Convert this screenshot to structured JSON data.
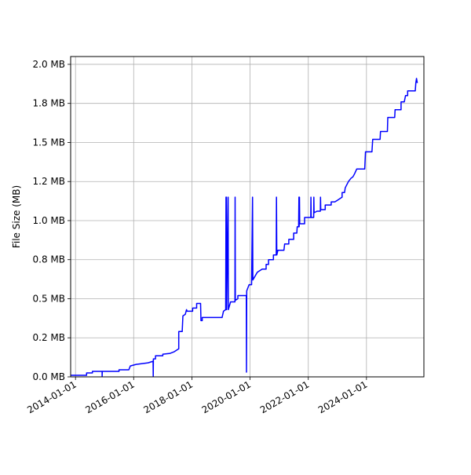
{
  "chart_data": {
    "type": "line",
    "title": "",
    "xlabel": "",
    "ylabel": "File Size (MB)",
    "grid": true,
    "legend": "none",
    "xlim": [
      "2013-11-01",
      "2025-12-22"
    ],
    "ylim": [
      0,
      2.05
    ],
    "x_ticks": [
      "2014-01-01",
      "2016-01-01",
      "2018-01-01",
      "2020-01-01",
      "2022-01-01",
      "2024-01-01"
    ],
    "y_ticks": [
      0.0,
      0.25,
      0.5,
      0.75,
      1.0,
      1.25,
      1.5,
      1.75,
      2.0
    ],
    "y_tick_labels": [
      "0.0 MB",
      "0.2 MB",
      "0.5 MB",
      "0.8 MB",
      "1.0 MB",
      "1.2 MB",
      "1.5 MB",
      "1.8 MB",
      "2.0 MB"
    ],
    "series": [
      {
        "color": "#0000ff",
        "points": [
          [
            "2013-11-01",
            0.01
          ],
          [
            "2014-05-20",
            0.01
          ],
          [
            "2014-05-20",
            0.025
          ],
          [
            "2014-08-01",
            0.025
          ],
          [
            "2014-08-01",
            0.035
          ],
          [
            "2014-12-01",
            0.035
          ],
          [
            "2014-12-01",
            0.0
          ],
          [
            "2014-12-03",
            0.035
          ],
          [
            "2015-07-01",
            0.035
          ],
          [
            "2015-07-01",
            0.045
          ],
          [
            "2015-11-01",
            0.045
          ],
          [
            "2015-11-20",
            0.07
          ],
          [
            "2016-02-01",
            0.08
          ],
          [
            "2016-07-01",
            0.09
          ],
          [
            "2016-09-01",
            0.1
          ],
          [
            "2016-09-03",
            0.0
          ],
          [
            "2016-09-05",
            0.115
          ],
          [
            "2016-10-01",
            0.115
          ],
          [
            "2016-10-01",
            0.135
          ],
          [
            "2017-01-01",
            0.135
          ],
          [
            "2017-01-01",
            0.145
          ],
          [
            "2017-04-01",
            0.15
          ],
          [
            "2017-05-20",
            0.16
          ],
          [
            "2017-07-20",
            0.18
          ],
          [
            "2017-07-20",
            0.29
          ],
          [
            "2017-09-01",
            0.29
          ],
          [
            "2017-09-10",
            0.39
          ],
          [
            "2017-10-10",
            0.4
          ],
          [
            "2017-10-25",
            0.43
          ],
          [
            "2017-11-01",
            0.42
          ],
          [
            "2018-01-10",
            0.42
          ],
          [
            "2018-01-10",
            0.44
          ],
          [
            "2018-03-01",
            0.44
          ],
          [
            "2018-03-01",
            0.47
          ],
          [
            "2018-04-20",
            0.47
          ],
          [
            "2018-04-25",
            0.36
          ],
          [
            "2018-05-10",
            0.36
          ],
          [
            "2018-05-10",
            0.38
          ],
          [
            "2019-01-15",
            0.38
          ],
          [
            "2019-02-01",
            0.42
          ],
          [
            "2019-03-01",
            0.43
          ],
          [
            "2019-03-05",
            1.15
          ],
          [
            "2019-03-08",
            0.43
          ],
          [
            "2019-03-10",
            1.15
          ],
          [
            "2019-03-13",
            0.43
          ],
          [
            "2019-04-01",
            1.15
          ],
          [
            "2019-04-04",
            0.43
          ],
          [
            "2019-05-01",
            0.48
          ],
          [
            "2019-06-25",
            0.48
          ],
          [
            "2019-06-27",
            1.15
          ],
          [
            "2019-06-30",
            0.49
          ],
          [
            "2019-08-01",
            0.5
          ],
          [
            "2019-08-01",
            0.52
          ],
          [
            "2019-11-15",
            0.52
          ],
          [
            "2019-11-17",
            0.03
          ],
          [
            "2019-11-20",
            0.55
          ],
          [
            "2019-12-20",
            0.59
          ],
          [
            "2020-01-20",
            0.59
          ],
          [
            "2020-02-01",
            1.15
          ],
          [
            "2020-02-05",
            0.62
          ],
          [
            "2020-04-01",
            0.67
          ],
          [
            "2020-06-01",
            0.69
          ],
          [
            "2020-07-20",
            0.69
          ],
          [
            "2020-07-20",
            0.72
          ],
          [
            "2020-08-20",
            0.72
          ],
          [
            "2020-08-20",
            0.75
          ],
          [
            "2020-10-20",
            0.75
          ],
          [
            "2020-10-20",
            0.78
          ],
          [
            "2020-11-25",
            0.78
          ],
          [
            "2020-11-28",
            1.15
          ],
          [
            "2020-12-01",
            0.78
          ],
          [
            "2020-12-15",
            0.81
          ],
          [
            "2021-03-01",
            0.81
          ],
          [
            "2021-03-10",
            0.85
          ],
          [
            "2021-05-01",
            0.85
          ],
          [
            "2021-05-01",
            0.88
          ],
          [
            "2021-07-01",
            0.88
          ],
          [
            "2021-07-01",
            0.92
          ],
          [
            "2021-08-10",
            0.92
          ],
          [
            "2021-08-15",
            0.96
          ],
          [
            "2021-09-01",
            0.96
          ],
          [
            "2021-09-05",
            1.15
          ],
          [
            "2021-09-08",
            0.96
          ],
          [
            "2021-09-12",
            1.15
          ],
          [
            "2021-09-15",
            0.98
          ],
          [
            "2021-11-15",
            0.98
          ],
          [
            "2021-11-15",
            1.02
          ],
          [
            "2022-02-01",
            1.02
          ],
          [
            "2022-02-03",
            1.15
          ],
          [
            "2022-02-06",
            1.02
          ],
          [
            "2022-03-10",
            1.02
          ],
          [
            "2022-03-12",
            1.15
          ],
          [
            "2022-03-15",
            1.05
          ],
          [
            "2022-04-20",
            1.06
          ],
          [
            "2022-06-01",
            1.06
          ],
          [
            "2022-06-03",
            1.15
          ],
          [
            "2022-06-06",
            1.07
          ],
          [
            "2022-08-01",
            1.07
          ],
          [
            "2022-08-01",
            1.1
          ],
          [
            "2022-10-15",
            1.1
          ],
          [
            "2022-10-15",
            1.12
          ],
          [
            "2022-12-01",
            1.12
          ],
          [
            "2023-01-01",
            1.13
          ],
          [
            "2023-03-01",
            1.15
          ],
          [
            "2023-03-01",
            1.18
          ],
          [
            "2023-04-01",
            1.18
          ],
          [
            "2023-04-10",
            1.21
          ],
          [
            "2023-05-20",
            1.25
          ],
          [
            "2023-06-20",
            1.27
          ],
          [
            "2023-07-15",
            1.28
          ],
          [
            "2023-08-05",
            1.3
          ],
          [
            "2023-09-01",
            1.33
          ],
          [
            "2023-12-10",
            1.33
          ],
          [
            "2023-12-20",
            1.44
          ],
          [
            "2024-03-10",
            1.44
          ],
          [
            "2024-03-20",
            1.52
          ],
          [
            "2024-06-20",
            1.52
          ],
          [
            "2024-06-25",
            1.57
          ],
          [
            "2024-09-20",
            1.57
          ],
          [
            "2024-09-25",
            1.66
          ],
          [
            "2024-12-20",
            1.66
          ],
          [
            "2024-12-25",
            1.71
          ],
          [
            "2025-03-10",
            1.71
          ],
          [
            "2025-03-10",
            1.76
          ],
          [
            "2025-04-20",
            1.76
          ],
          [
            "2025-05-05",
            1.8
          ],
          [
            "2025-06-01",
            1.8
          ],
          [
            "2025-06-01",
            1.83
          ],
          [
            "2025-09-05",
            1.83
          ],
          [
            "2025-09-12",
            1.88
          ],
          [
            "2025-09-20",
            1.91
          ],
          [
            "2025-09-30",
            1.88
          ]
        ]
      }
    ]
  }
}
